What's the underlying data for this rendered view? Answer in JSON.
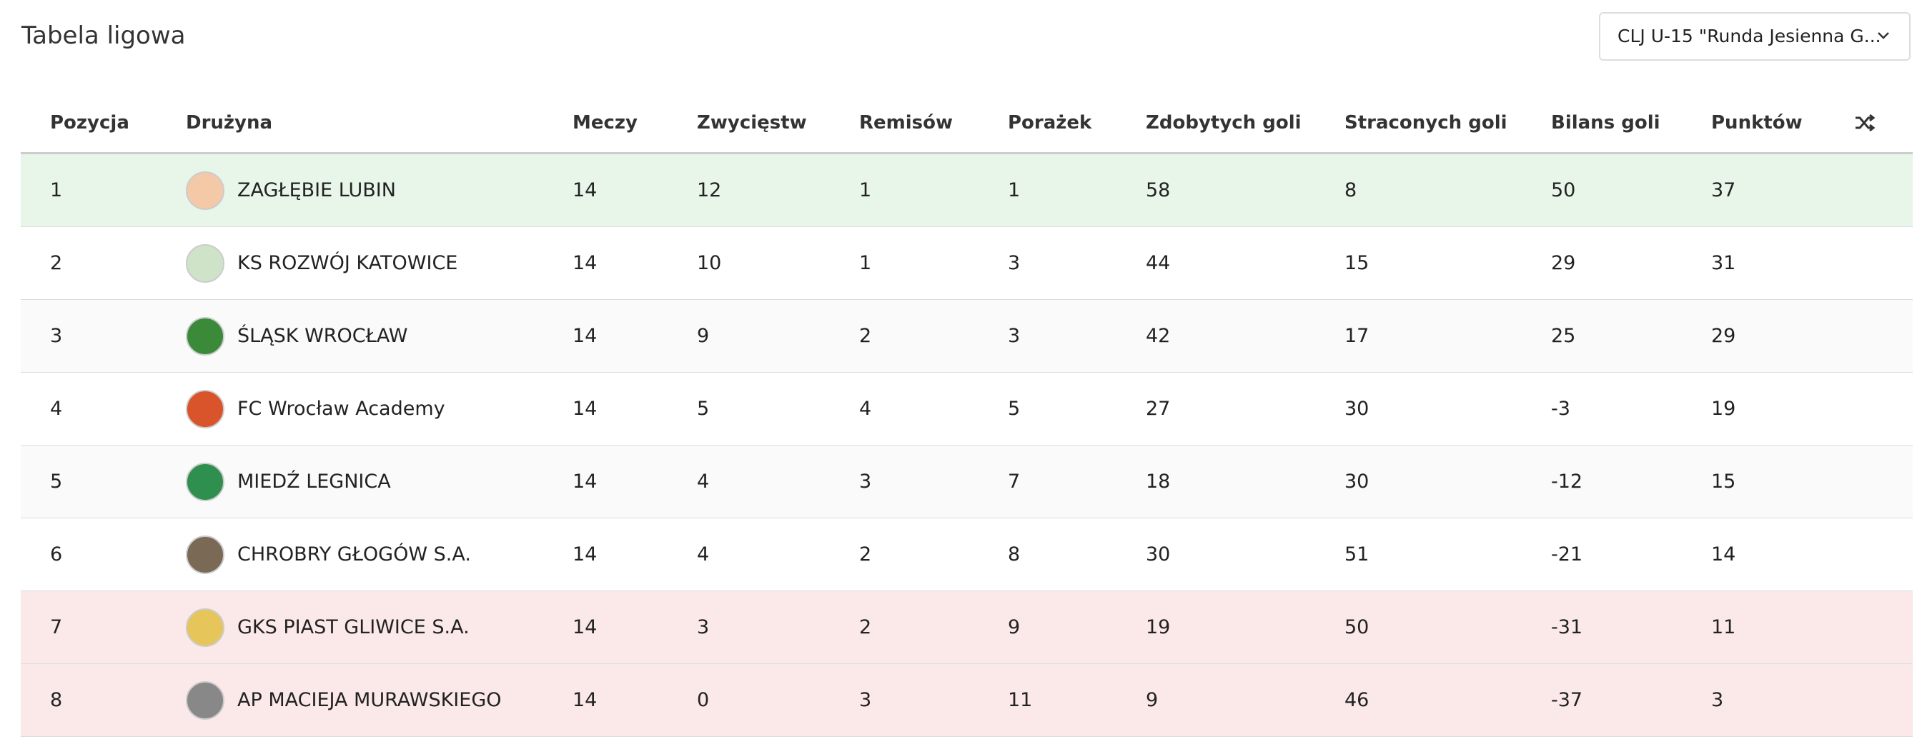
{
  "header": {
    "title": "Tabela ligowa",
    "dropdown": "CLJ U-15 \"Runda Jesienna G..."
  },
  "table": {
    "columns": [
      "Pozycja",
      "Drużyna",
      "Meczy",
      "Zwycięstw",
      "Remisów",
      "Porażek",
      "Zdobytych goli",
      "Straconych goli",
      "Bilans goli",
      "Punktów"
    ],
    "rows": [
      [
        1,
        "ZAGŁĘBIE LUBIN",
        14,
        12,
        1,
        1,
        58,
        8,
        50,
        37
      ],
      [
        2,
        "KS ROZWÓJ KATOWICE",
        14,
        10,
        1,
        3,
        44,
        15,
        29,
        31
      ],
      [
        3,
        "ŚLĄSK WROCŁAW",
        14,
        9,
        2,
        3,
        42,
        17,
        25,
        29
      ],
      [
        4,
        "FC Wrocław Academy",
        14,
        5,
        4,
        5,
        27,
        30,
        -3,
        19
      ],
      [
        5,
        "MIEDŹ LEGNICA",
        14,
        4,
        3,
        7,
        18,
        30,
        -12,
        15
      ],
      [
        6,
        "CHROBRY GŁOGÓW S.A.",
        14,
        4,
        2,
        8,
        30,
        51,
        -21,
        14
      ],
      [
        7,
        "GKS PIAST GLIWICE S.A.",
        14,
        3,
        2,
        9,
        19,
        50,
        -31,
        11
      ],
      [
        8,
        "AP MACIEJA MURAWSKIEGO",
        14,
        0,
        3,
        11,
        9,
        46,
        -37,
        3
      ]
    ]
  }
}
